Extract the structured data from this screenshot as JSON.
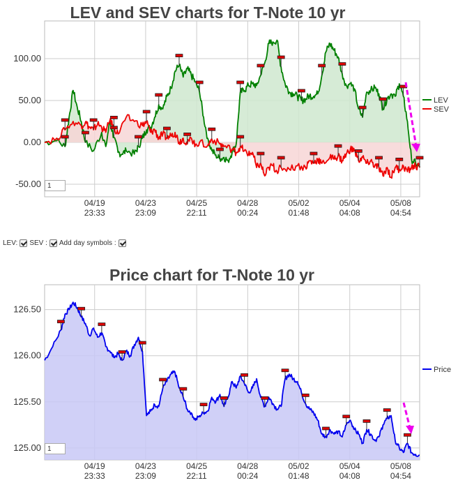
{
  "chart_data": [
    {
      "type": "area",
      "title": "LEV and SEV charts for T-Note 10 yr",
      "y_ticks": [
        "100.00",
        "50.00",
        "0.00",
        "-50.00"
      ],
      "y_tick_values": [
        100,
        50,
        0,
        -50
      ],
      "ylim": [
        -65,
        145
      ],
      "x_ticks": [
        {
          "date": "04/19",
          "time": "23:33"
        },
        {
          "date": "04/23",
          "time": "23:09"
        },
        {
          "date": "04/25",
          "time": "22:11"
        },
        {
          "date": "04/28",
          "time": "00:24"
        },
        {
          "date": "05/02",
          "time": "01:48"
        },
        {
          "date": "05/04",
          "time": "04:08"
        },
        {
          "date": "05/08",
          "time": "04:54"
        }
      ],
      "series": [
        {
          "name": "LEV",
          "color": "#008000",
          "fill": "#cfe8cf",
          "values": [
            [
              0,
              0
            ],
            [
              3,
              2
            ],
            [
              5,
              -5
            ],
            [
              6,
              30
            ],
            [
              7,
              62
            ],
            [
              8,
              42
            ],
            [
              9,
              25
            ],
            [
              10,
              0
            ],
            [
              12,
              -10
            ],
            [
              14,
              12
            ],
            [
              15,
              -5
            ],
            [
              16,
              25
            ],
            [
              17,
              6
            ],
            [
              18,
              -12
            ],
            [
              19,
              -14
            ],
            [
              20,
              -10
            ],
            [
              22,
              -14
            ],
            [
              23,
              -5
            ],
            [
              24,
              5
            ],
            [
              25,
              15
            ],
            [
              26,
              18
            ],
            [
              27,
              30
            ],
            [
              28,
              45
            ],
            [
              29,
              40
            ],
            [
              30,
              55
            ],
            [
              31,
              65
            ],
            [
              32,
              85
            ],
            [
              33,
              92
            ],
            [
              34,
              78
            ],
            [
              35,
              88
            ],
            [
              36,
              80
            ],
            [
              37,
              72
            ],
            [
              38,
              60
            ],
            [
              39,
              30
            ],
            [
              40,
              5
            ],
            [
              41,
              -10
            ],
            [
              42,
              -15
            ],
            [
              43,
              -20
            ],
            [
              44,
              -18
            ],
            [
              45,
              -22
            ],
            [
              46,
              -12
            ],
            [
              47,
              -2
            ],
            [
              48,
              60
            ],
            [
              49,
              62
            ],
            [
              50,
              68
            ],
            [
              51,
              70
            ],
            [
              52,
              68
            ],
            [
              53,
              80
            ],
            [
              54,
              95
            ],
            [
              55,
              118
            ],
            [
              56,
              120
            ],
            [
              57,
              122
            ],
            [
              58,
              90
            ],
            [
              59,
              70
            ],
            [
              60,
              60
            ],
            [
              61,
              58
            ],
            [
              62,
              55
            ],
            [
              63,
              50
            ],
            [
              64,
              52
            ],
            [
              65,
              56
            ],
            [
              66,
              55
            ],
            [
              67,
              58
            ],
            [
              68,
              80
            ],
            [
              69,
              108
            ],
            [
              70,
              118
            ],
            [
              71,
              110
            ],
            [
              72,
              102
            ],
            [
              73,
              82
            ],
            [
              74,
              68
            ],
            [
              75,
              70
            ],
            [
              76,
              64
            ],
            [
              77,
              40
            ],
            [
              78,
              30
            ],
            [
              79,
              60
            ],
            [
              80,
              62
            ],
            [
              81,
              65
            ],
            [
              82,
              58
            ],
            [
              83,
              40
            ],
            [
              84,
              52
            ],
            [
              85,
              58
            ],
            [
              86,
              55
            ],
            [
              87,
              70
            ],
            [
              88,
              55
            ],
            [
              89,
              25
            ],
            [
              90,
              -20
            ],
            [
              91,
              -25
            ],
            [
              92,
              -30
            ]
          ]
        },
        {
          "name": "SEV",
          "color": "#ee0000",
          "fill": "#f7d6d6",
          "values": [
            [
              0,
              0
            ],
            [
              3,
              5
            ],
            [
              5,
              15
            ],
            [
              7,
              25
            ],
            [
              9,
              20
            ],
            [
              10,
              24
            ],
            [
              11,
              18
            ],
            [
              12,
              15
            ],
            [
              13,
              22
            ],
            [
              14,
              18
            ],
            [
              15,
              12
            ],
            [
              16,
              26
            ],
            [
              17,
              18
            ],
            [
              18,
              10
            ],
            [
              20,
              30
            ],
            [
              22,
              25
            ],
            [
              24,
              20
            ],
            [
              25,
              25
            ],
            [
              26,
              12
            ],
            [
              27,
              15
            ],
            [
              28,
              5
            ],
            [
              29,
              10
            ],
            [
              30,
              5
            ],
            [
              31,
              8
            ],
            [
              32,
              12
            ],
            [
              33,
              0
            ],
            [
              34,
              5
            ],
            [
              35,
              -2
            ],
            [
              36,
              5
            ],
            [
              37,
              -3
            ],
            [
              38,
              0
            ],
            [
              40,
              -4
            ],
            [
              41,
              4
            ],
            [
              43,
              -2
            ],
            [
              44,
              -5
            ],
            [
              46,
              -8
            ],
            [
              47,
              -12
            ],
            [
              48,
              -5
            ],
            [
              49,
              -10
            ],
            [
              50,
              -15
            ],
            [
              51,
              -12
            ],
            [
              52,
              -30
            ],
            [
              53,
              -25
            ],
            [
              54,
              -40
            ],
            [
              55,
              -30
            ],
            [
              56,
              -28
            ],
            [
              57,
              -35
            ],
            [
              58,
              -30
            ],
            [
              60,
              -32
            ],
            [
              62,
              -28
            ],
            [
              64,
              -30
            ],
            [
              65,
              -22
            ],
            [
              66,
              -25
            ],
            [
              67,
              -20
            ],
            [
              68,
              -25
            ],
            [
              70,
              -18
            ],
            [
              71,
              -20
            ],
            [
              72,
              -16
            ],
            [
              73,
              -22
            ],
            [
              74,
              -14
            ],
            [
              75,
              -8
            ],
            [
              76,
              -10
            ],
            [
              77,
              -22
            ],
            [
              78,
              -18
            ],
            [
              79,
              -25
            ],
            [
              80,
              -22
            ],
            [
              81,
              -28
            ],
            [
              82,
              -30
            ],
            [
              83,
              -40
            ],
            [
              84,
              -30
            ],
            [
              85,
              -42
            ],
            [
              86,
              -30
            ],
            [
              87,
              -32
            ],
            [
              88,
              -28
            ],
            [
              89,
              -35
            ],
            [
              90,
              -30
            ],
            [
              91,
              -28
            ],
            [
              92,
              -30
            ]
          ]
        }
      ],
      "legend_position": "right",
      "grid": true
    },
    {
      "type": "area",
      "title": "Price chart for T-Note 10 yr",
      "y_ticks": [
        "126.50",
        "126.00",
        "125.50",
        "125.00"
      ],
      "y_tick_values": [
        126.5,
        126.0,
        125.5,
        125.0
      ],
      "ylim": [
        124.87,
        126.77
      ],
      "x_ticks": [
        {
          "date": "04/19",
          "time": "23:33"
        },
        {
          "date": "04/23",
          "time": "23:09"
        },
        {
          "date": "04/25",
          "time": "22:11"
        },
        {
          "date": "04/28",
          "time": "00:24"
        },
        {
          "date": "05/02",
          "time": "01:48"
        },
        {
          "date": "05/04",
          "time": "04:08"
        },
        {
          "date": "05/08",
          "time": "04:54"
        }
      ],
      "series": [
        {
          "name": "Price",
          "color": "#0000ee",
          "fill": "#c8c8f6",
          "values": [
            [
              0,
              125.95
            ],
            [
              2,
              126.1
            ],
            [
              4,
              126.28
            ],
            [
              5,
              126.45
            ],
            [
              6,
              126.5
            ],
            [
              7,
              126.58
            ],
            [
              8,
              126.52
            ],
            [
              9,
              126.42
            ],
            [
              10,
              126.35
            ],
            [
              11,
              126.22
            ],
            [
              12,
              126.3
            ],
            [
              13,
              126.2
            ],
            [
              14,
              126.25
            ],
            [
              15,
              126.1
            ],
            [
              16,
              126.05
            ],
            [
              17,
              125.98
            ],
            [
              18,
              126.02
            ],
            [
              19,
              125.95
            ],
            [
              20,
              126.05
            ],
            [
              21,
              126.0
            ],
            [
              22,
              126.12
            ],
            [
              23,
              126.2
            ],
            [
              24,
              126.05
            ],
            [
              25,
              125.35
            ],
            [
              26,
              125.4
            ],
            [
              27,
              125.47
            ],
            [
              28,
              125.45
            ],
            [
              29,
              125.65
            ],
            [
              30,
              125.72
            ],
            [
              31,
              125.8
            ],
            [
              32,
              125.82
            ],
            [
              33,
              125.65
            ],
            [
              34,
              125.55
            ],
            [
              35,
              125.42
            ],
            [
              36,
              125.38
            ],
            [
              37,
              125.3
            ],
            [
              38,
              125.35
            ],
            [
              39,
              125.38
            ],
            [
              40,
              125.4
            ],
            [
              41,
              125.55
            ],
            [
              42,
              125.5
            ],
            [
              43,
              125.58
            ],
            [
              44,
              125.45
            ],
            [
              45,
              125.55
            ],
            [
              46,
              125.72
            ],
            [
              47,
              125.65
            ],
            [
              48,
              125.78
            ],
            [
              49,
              125.7
            ],
            [
              50,
              125.6
            ],
            [
              51,
              125.65
            ],
            [
              52,
              125.75
            ],
            [
              53,
              125.55
            ],
            [
              54,
              125.45
            ],
            [
              55,
              125.55
            ],
            [
              56,
              125.48
            ],
            [
              57,
              125.42
            ],
            [
              58,
              125.45
            ],
            [
              59,
              125.75
            ],
            [
              60,
              125.8
            ],
            [
              61,
              125.75
            ],
            [
              62,
              125.72
            ],
            [
              63,
              125.6
            ],
            [
              64,
              125.48
            ],
            [
              65,
              125.42
            ],
            [
              66,
              125.38
            ],
            [
              67,
              125.3
            ],
            [
              68,
              125.15
            ],
            [
              69,
              125.12
            ],
            [
              70,
              125.2
            ],
            [
              71,
              125.15
            ],
            [
              72,
              125.18
            ],
            [
              73,
              125.12
            ],
            [
              74,
              125.25
            ],
            [
              75,
              125.3
            ],
            [
              76,
              125.2
            ],
            [
              77,
              125.15
            ],
            [
              78,
              125.05
            ],
            [
              79,
              125.2
            ],
            [
              80,
              125.15
            ],
            [
              81,
              125.08
            ],
            [
              82,
              125.12
            ],
            [
              83,
              125.25
            ],
            [
              84,
              125.32
            ],
            [
              85,
              125.35
            ],
            [
              86,
              125.08
            ],
            [
              87,
              125.0
            ],
            [
              88,
              124.95
            ],
            [
              89,
              125.05
            ],
            [
              90,
              124.95
            ],
            [
              91,
              124.93
            ],
            [
              92,
              124.92
            ]
          ]
        }
      ],
      "legend_position": "right",
      "grid": true
    }
  ],
  "controls": {
    "lev_label": "LEV:",
    "sev_label": "SEV :",
    "day_symbols_label": "Add day symbols :"
  },
  "zoom_value": "1"
}
